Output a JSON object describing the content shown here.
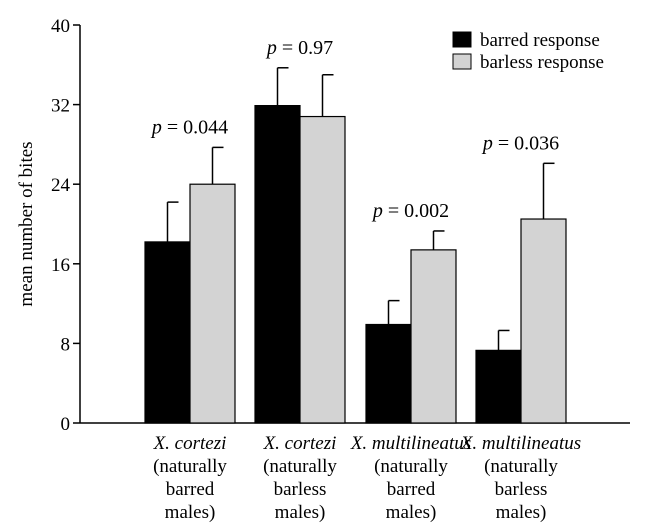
{
  "chart_data": {
    "type": "bar",
    "title": "",
    "xlabel": "",
    "ylabel": "mean number of bites",
    "ylim": [
      0,
      40
    ],
    "yticks": [
      0,
      8,
      16,
      24,
      32,
      40
    ],
    "grid": false,
    "legend_position": "top-right",
    "categories": [
      {
        "species": "X. cortezi",
        "lines": [
          "(naturally",
          "barred",
          "males)"
        ]
      },
      {
        "species": "X. cortezi",
        "lines": [
          "(naturally",
          "barless",
          "males)"
        ]
      },
      {
        "species": "X. multilineatus",
        "lines": [
          "(naturally",
          "barred",
          "males)"
        ]
      },
      {
        "species": "X. multilineatus",
        "lines": [
          "(naturally",
          "barless",
          "males)"
        ]
      }
    ],
    "series": [
      {
        "name": "barred response",
        "color": "#000000",
        "values": [
          18.2,
          31.9,
          9.9,
          7.3
        ],
        "errors": [
          4.0,
          3.8,
          2.4,
          2.0
        ]
      },
      {
        "name": "barless response",
        "color": "#d3d3d3",
        "values": [
          24.0,
          30.8,
          17.4,
          20.5
        ],
        "errors": [
          3.7,
          4.2,
          1.9,
          5.6
        ]
      }
    ],
    "annotations": [
      {
        "p_symbol": "p",
        "text": " = 0.044",
        "group": 0
      },
      {
        "p_symbol": "p",
        "text": " = 0.97",
        "group": 1
      },
      {
        "p_symbol": "p",
        "text": " = 0.002",
        "group": 2
      },
      {
        "p_symbol": "p",
        "text": " = 0.036",
        "group": 3
      }
    ]
  }
}
